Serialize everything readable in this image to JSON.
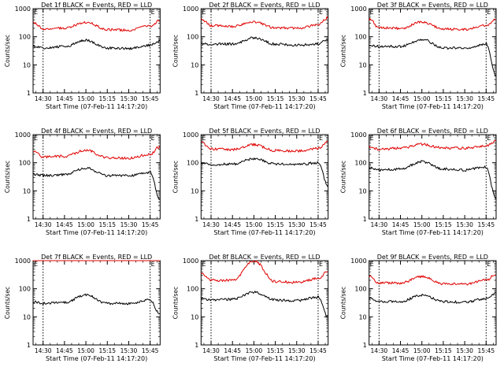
{
  "figure": {
    "xlabel": "Start Time (07-Feb-11 14:17:20)",
    "ylabel": "Counts/sec",
    "x_ticks": [
      "14:30",
      "14:45",
      "15:00",
      "15:15",
      "15:30",
      "15:45"
    ],
    "y_ticks": [
      "1",
      "10",
      "100",
      "1000"
    ],
    "marker_left": "E",
    "marker_right": "E",
    "colors": {
      "events": "#000000",
      "lld": "#e00000"
    }
  },
  "chart_data": [
    {
      "type": "line",
      "title": "Det 1f BLACK = Events, RED = LLD",
      "xlabel": "Start Time (07-Feb-11 14:17:20)",
      "ylabel": "Counts/sec",
      "yscale": "log",
      "ylim": [
        1,
        1000
      ],
      "x": [
        "14:23",
        "14:30",
        "14:45",
        "15:00",
        "15:15",
        "15:30",
        "15:45",
        "15:52"
      ],
      "series": [
        {
          "name": "LLD",
          "color": "#e00000",
          "values": [
            330,
            190,
            200,
            330,
            180,
            170,
            240,
            380
          ]
        },
        {
          "name": "Events",
          "color": "#000000",
          "values": [
            45,
            40,
            45,
            75,
            40,
            38,
            50,
            70
          ]
        }
      ]
    },
    {
      "type": "line",
      "title": "Det 2f BLACK = Events, RED = LLD",
      "xlabel": "Start Time (07-Feb-11 14:17:20)",
      "ylabel": "Counts/sec",
      "yscale": "log",
      "ylim": [
        1,
        1000
      ],
      "x": [
        "14:23",
        "14:30",
        "14:45",
        "15:00",
        "15:15",
        "15:30",
        "15:45",
        "15:52"
      ],
      "series": [
        {
          "name": "LLD",
          "color": "#e00000",
          "values": [
            440,
            250,
            230,
            340,
            210,
            200,
            260,
            480
          ]
        },
        {
          "name": "Events",
          "color": "#000000",
          "values": [
            55,
            55,
            55,
            90,
            55,
            50,
            55,
            85
          ]
        }
      ]
    },
    {
      "type": "line",
      "title": "Det 3f BLACK = Events, RED = LLD",
      "xlabel": "Start Time (07-Feb-11 14:17:20)",
      "ylabel": "Counts/sec",
      "yscale": "log",
      "ylim": [
        1,
        1000
      ],
      "x": [
        "14:23",
        "14:30",
        "14:45",
        "15:00",
        "15:15",
        "15:30",
        "15:45",
        "15:52"
      ],
      "series": [
        {
          "name": "LLD",
          "color": "#e00000",
          "values": [
            420,
            210,
            200,
            330,
            190,
            180,
            250,
            420
          ]
        },
        {
          "name": "Events",
          "color": "#000000",
          "values": [
            50,
            45,
            45,
            80,
            40,
            40,
            55,
            4
          ]
        }
      ]
    },
    {
      "type": "line",
      "title": "Det 4f BLACK = Events, RED = LLD",
      "xlabel": "Start Time (07-Feb-11 14:17:20)",
      "ylabel": "Counts/sec",
      "yscale": "log",
      "ylim": [
        1,
        1000
      ],
      "x": [
        "14:23",
        "14:30",
        "14:45",
        "15:00",
        "15:15",
        "15:30",
        "15:45",
        "15:52"
      ],
      "series": [
        {
          "name": "LLD",
          "color": "#e00000",
          "values": [
            270,
            160,
            170,
            280,
            150,
            145,
            200,
            380
          ]
        },
        {
          "name": "Events",
          "color": "#000000",
          "values": [
            40,
            35,
            38,
            65,
            35,
            35,
            45,
            5
          ]
        }
      ]
    },
    {
      "type": "line",
      "title": "Det 5f BLACK = Events, RED = LLD",
      "xlabel": "Start Time (07-Feb-11 14:17:20)",
      "ylabel": "Counts/sec",
      "yscale": "log",
      "ylim": [
        1,
        1000
      ],
      "x": [
        "14:23",
        "14:30",
        "14:45",
        "15:00",
        "15:15",
        "15:30",
        "15:45",
        "15:52"
      ],
      "series": [
        {
          "name": "LLD",
          "color": "#e00000",
          "values": [
            550,
            310,
            290,
            440,
            270,
            260,
            320,
            600
          ]
        },
        {
          "name": "Events",
          "color": "#000000",
          "values": [
            100,
            85,
            90,
            140,
            90,
            85,
            100,
            15
          ]
        }
      ]
    },
    {
      "type": "line",
      "title": "Det 6f BLACK = Events, RED = LLD",
      "xlabel": "Start Time (07-Feb-11 14:17:20)",
      "ylabel": "Counts/sec",
      "yscale": "log",
      "ylim": [
        1,
        1000
      ],
      "x": [
        "14:23",
        "14:30",
        "14:45",
        "15:00",
        "15:15",
        "15:30",
        "15:45",
        "15:52"
      ],
      "series": [
        {
          "name": "LLD",
          "color": "#e00000",
          "values": [
            380,
            300,
            330,
            450,
            340,
            330,
            400,
            600
          ]
        },
        {
          "name": "Events",
          "color": "#000000",
          "values": [
            65,
            55,
            60,
            110,
            60,
            55,
            70,
            5
          ]
        }
      ]
    },
    {
      "type": "line",
      "title": "Det 7f BLACK = Events, RED = LLD",
      "xlabel": "Start Time (07-Feb-11 14:17:20)",
      "ylabel": "Counts/sec",
      "yscale": "log",
      "ylim": [
        1,
        1000
      ],
      "x": [
        "14:23",
        "14:30",
        "14:45",
        "15:00",
        "15:15",
        "15:30",
        "15:45",
        "15:52"
      ],
      "series": [
        {
          "name": "LLD",
          "color": "#e00000",
          "values": [
            1000,
            1000,
            1000,
            1000,
            1000,
            1000,
            1000,
            1000
          ]
        },
        {
          "name": "Events",
          "color": "#000000",
          "values": [
            35,
            30,
            32,
            60,
            30,
            30,
            40,
            12
          ]
        }
      ]
    },
    {
      "type": "line",
      "title": "Det 8f BLACK = Events, RED = LLD",
      "xlabel": "Start Time (07-Feb-11 14:17:20)",
      "ylabel": "Counts/sec",
      "yscale": "log",
      "ylim": [
        1,
        1000
      ],
      "x": [
        "14:23",
        "14:30",
        "14:45",
        "15:00",
        "15:15",
        "15:30",
        "15:45",
        "15:52"
      ],
      "series": [
        {
          "name": "LLD",
          "color": "#e00000",
          "values": [
            370,
            200,
            200,
            1000,
            180,
            170,
            230,
            420
          ]
        },
        {
          "name": "Events",
          "color": "#000000",
          "values": [
            48,
            40,
            42,
            75,
            40,
            38,
            50,
            10
          ]
        }
      ]
    },
    {
      "type": "line",
      "title": "Det 9f BLACK = Events, RED = LLD",
      "xlabel": "Start Time (07-Feb-11 14:17:20)",
      "ylabel": "Counts/sec",
      "yscale": "log",
      "ylim": [
        1,
        1000
      ],
      "x": [
        "14:23",
        "14:30",
        "14:45",
        "15:00",
        "15:15",
        "15:30",
        "15:45",
        "15:52"
      ],
      "series": [
        {
          "name": "LLD",
          "color": "#e00000",
          "values": [
            280,
            160,
            160,
            270,
            150,
            145,
            200,
            340
          ]
        },
        {
          "name": "Events",
          "color": "#000000",
          "values": [
            45,
            35,
            35,
            60,
            35,
            33,
            45,
            70
          ]
        }
      ]
    }
  ]
}
